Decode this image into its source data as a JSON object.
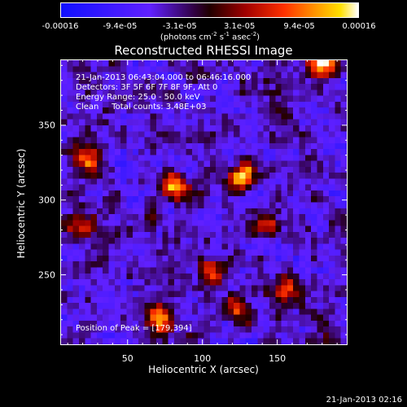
{
  "chart_data": {
    "type": "heatmap",
    "title": "Reconstructed RHESSI Image",
    "xlabel": "Heliocentric X (arcsec)",
    "ylabel": "Heliocentric Y (arcsec)",
    "xlim": [
      5,
      197
    ],
    "ylim": [
      203,
      394
    ],
    "x_ticks": [
      50,
      100,
      150
    ],
    "y_ticks": [
      250,
      300,
      350
    ],
    "colorbar": {
      "ticks": [
        "-0.00016",
        "-9.4e-05",
        "-3.1e-05",
        "3.1e-05",
        "9.4e-05",
        "0.00016"
      ],
      "unit_prefix": "(photons cm",
      "unit_exp1": "-2",
      "unit_mid1": " s",
      "unit_exp2": "-1",
      "unit_mid2": " asec",
      "unit_exp3": "-2",
      "unit_suffix": ")",
      "range": [
        -0.00016,
        0.00016
      ],
      "colormap": "blue-purple-red-yellow-white"
    },
    "info": [
      "21-Jan-2013 06:43:04.000 to 06:46:16.000",
      "Detectors: 3F 5F 6F 7F 8F 9F, Att 0",
      "Energy Range: 25.0 - 50.0 keV",
      "Clean     Total counts: 3.48E+03"
    ],
    "peak_label": "Position of Peak = [179,394]",
    "peak": [
      179,
      394
    ],
    "bright_sources": [
      {
        "x": 179,
        "y": 394,
        "level": 1.0
      },
      {
        "x": 125,
        "y": 318,
        "level": 0.95
      },
      {
        "x": 80,
        "y": 312,
        "level": 0.8
      },
      {
        "x": 70,
        "y": 222,
        "level": 0.9
      },
      {
        "x": 20,
        "y": 330,
        "level": 0.7
      },
      {
        "x": 15,
        "y": 285,
        "level": 0.7
      },
      {
        "x": 105,
        "y": 255,
        "level": 0.7
      },
      {
        "x": 140,
        "y": 285,
        "level": 0.7
      },
      {
        "x": 155,
        "y": 240,
        "level": 0.65
      },
      {
        "x": 120,
        "y": 230,
        "level": 0.7
      }
    ]
  },
  "timestamp": "21-Jan-2013 02:16"
}
